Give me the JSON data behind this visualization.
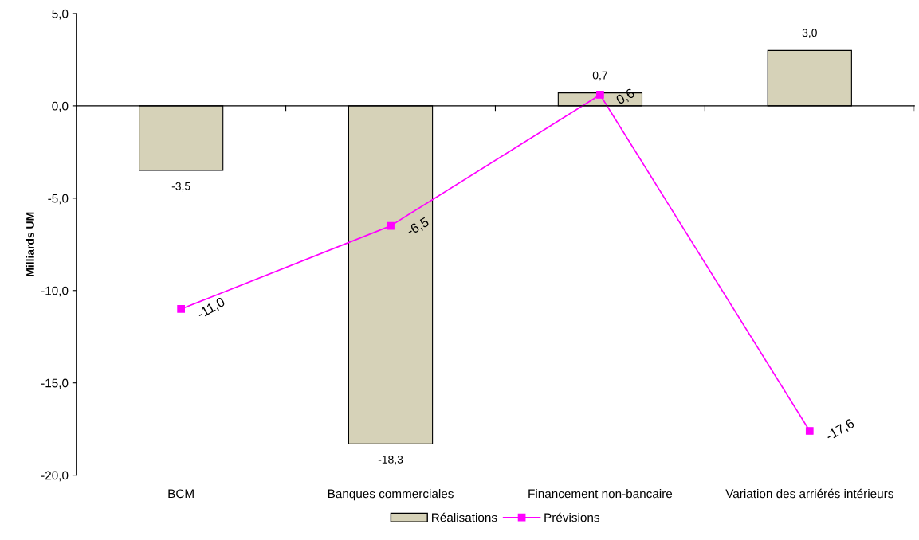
{
  "chart_data": {
    "type": "bar",
    "ylabel": "Milliards UM",
    "categories": [
      "BCM",
      "Banques commerciales",
      "Financement non-bancaire",
      "Variation des arriérés intérieurs"
    ],
    "series": [
      {
        "name": "Réalisations",
        "color": "#d6d2b8",
        "values": [
          -3.5,
          -18.3,
          0.7,
          3.0
        ],
        "value_labels": [
          "-3,5",
          "-18,3",
          "0,7",
          "3,0"
        ]
      },
      {
        "name": "Prévisions",
        "type": "line",
        "color": "#ff00ff",
        "values": [
          -11.0,
          -6.5,
          0.6,
          -17.6
        ],
        "value_labels": [
          "-11,0",
          "-6,5",
          "0,6",
          "-17,6"
        ]
      }
    ],
    "ylim": [
      -20,
      5
    ],
    "yticks": [
      {
        "value": -20,
        "label": "-20,0"
      },
      {
        "value": -15,
        "label": "-15,0"
      },
      {
        "value": -10,
        "label": "-10,0"
      },
      {
        "value": -5,
        "label": "-5,0"
      },
      {
        "value": 0,
        "label": "0,0"
      },
      {
        "value": 5,
        "label": "5,0"
      }
    ],
    "legend": "bottom",
    "marker": "square",
    "line_style": "solid"
  }
}
